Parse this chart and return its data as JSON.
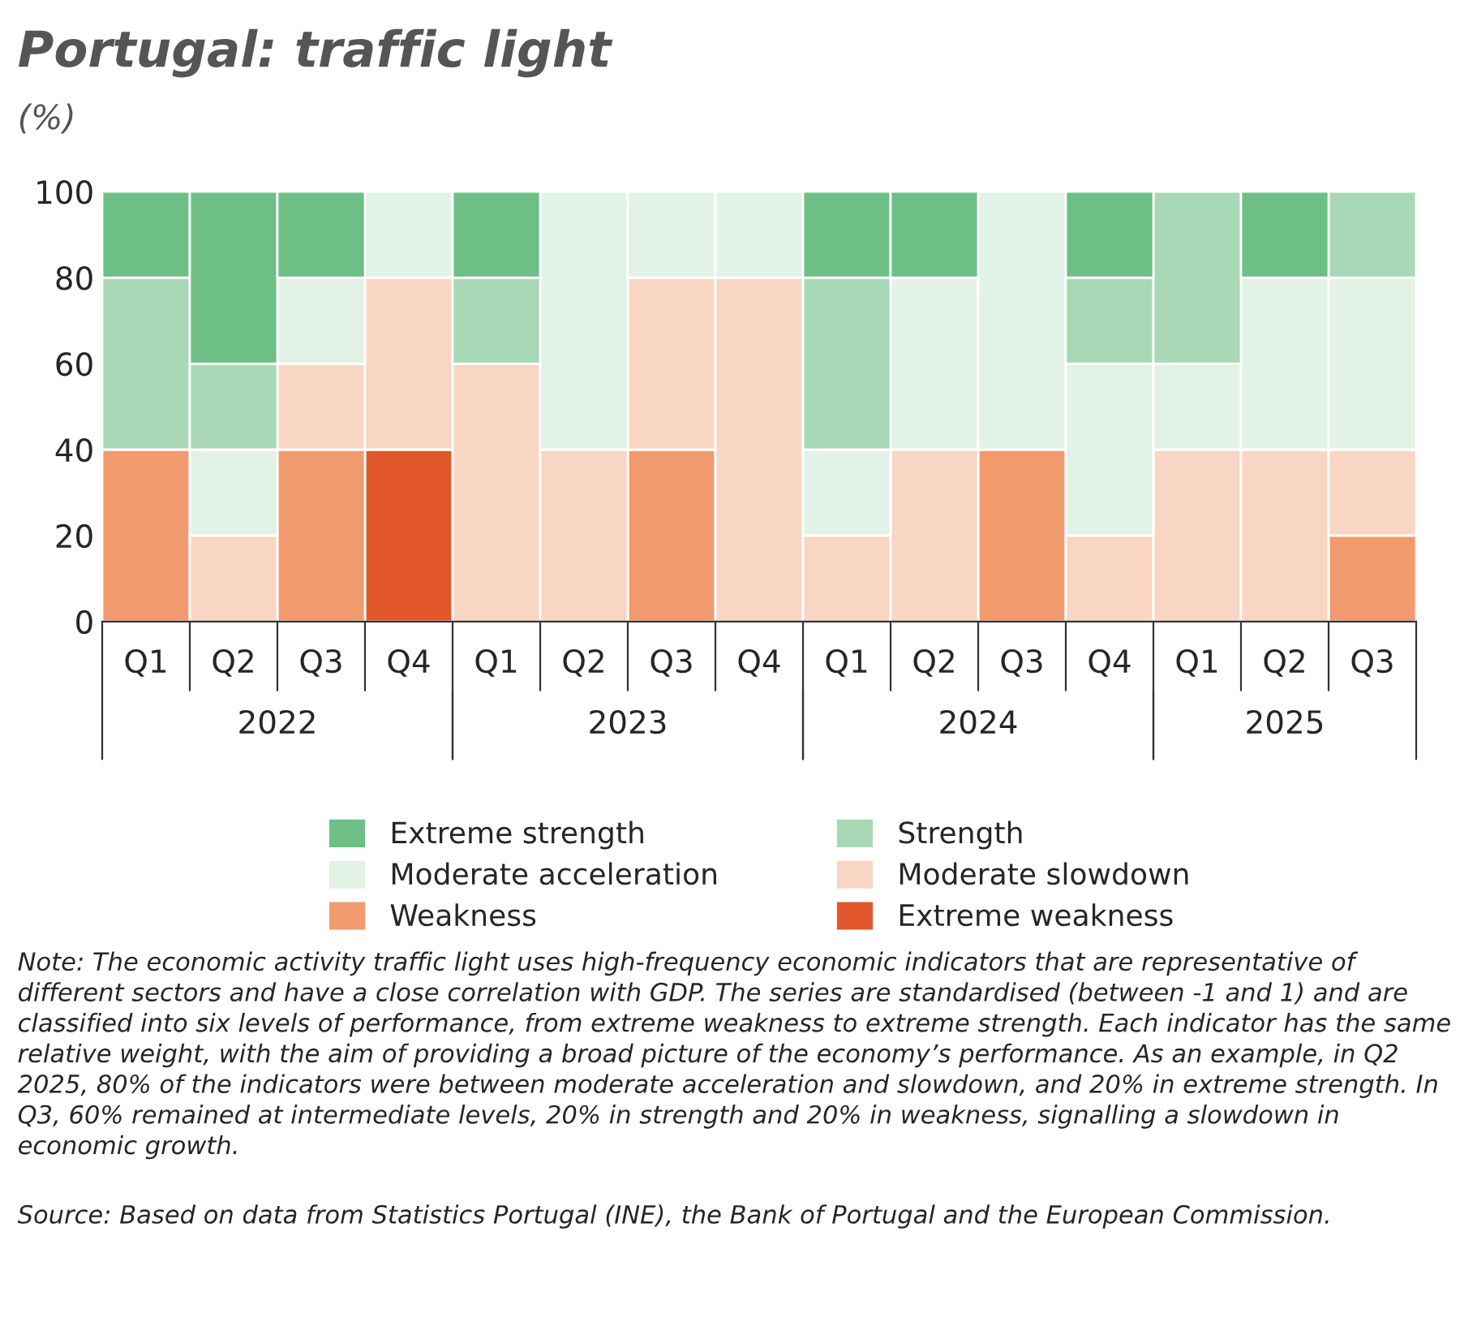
{
  "chart_data": {
    "type": "bar",
    "title": "Portugal: traffic light",
    "subtitle": "(%)",
    "categories": [
      "Q1",
      "Q2",
      "Q3",
      "Q4",
      "Q1",
      "Q2",
      "Q3",
      "Q4",
      "Q1",
      "Q2",
      "Q3",
      "Q4",
      "Q1",
      "Q2",
      "Q3"
    ],
    "stacked": true,
    "ylim": [
      0,
      100
    ],
    "yticks": [
      0,
      20,
      40,
      60,
      80,
      100
    ],
    "grid": false,
    "legend": "bottom",
    "series": [
      {
        "name": "Extreme weakness",
        "color": "#e2572b",
        "values": [
          0,
          0,
          0,
          40,
          0,
          0,
          0,
          0,
          0,
          0,
          0,
          0,
          0,
          0,
          0
        ]
      },
      {
        "name": "Weakness",
        "color": "#f19a6e",
        "values": [
          40,
          0,
          40,
          0,
          0,
          0,
          40,
          0,
          0,
          0,
          40,
          0,
          0,
          0,
          20
        ]
      },
      {
        "name": "Moderate slowdown",
        "color": "#f9d5c3",
        "values": [
          0,
          20,
          20,
          40,
          60,
          40,
          40,
          80,
          20,
          40,
          0,
          20,
          40,
          40,
          20
        ]
      },
      {
        "name": "Moderate acceleration",
        "color": "#e2f2e6",
        "values": [
          0,
          20,
          20,
          20,
          0,
          60,
          20,
          20,
          20,
          40,
          60,
          40,
          20,
          40,
          40
        ]
      },
      {
        "name": "Strength",
        "color": "#a8d8b5",
        "values": [
          40,
          20,
          0,
          0,
          20,
          0,
          0,
          0,
          40,
          0,
          0,
          20,
          40,
          0,
          20
        ]
      },
      {
        "name": "Extreme strength",
        "color": "#6dbf85",
        "values": [
          20,
          40,
          20,
          0,
          20,
          0,
          0,
          0,
          20,
          20,
          0,
          20,
          0,
          20,
          0
        ]
      }
    ],
    "annotations": [
      "2022",
      "2023",
      "2024",
      "2025",
      "Note: The economic activity traffic light uses high-frequency economic indicators that are representative of different sectors and have a close correlation with GDP. The series are standardised (between -1 and 1) and are classified into six levels of performance, from extreme weakness to extreme strength. Each indicator has the same relative weight, with the aim of providing a broad picture of the economy’s performance. As an example, in Q2 2025, 80% of the indicators were between moderate acceleration and slowdown, and 20% in extreme strength. In Q3, 60% remained at intermediate levels, 20% in strength and 20% in weakness, signalling a slowdown in economic growth.",
      "Source: Based on data from Statistics Portugal (INE), the Bank of Portugal and the European Commission."
    ]
  }
}
